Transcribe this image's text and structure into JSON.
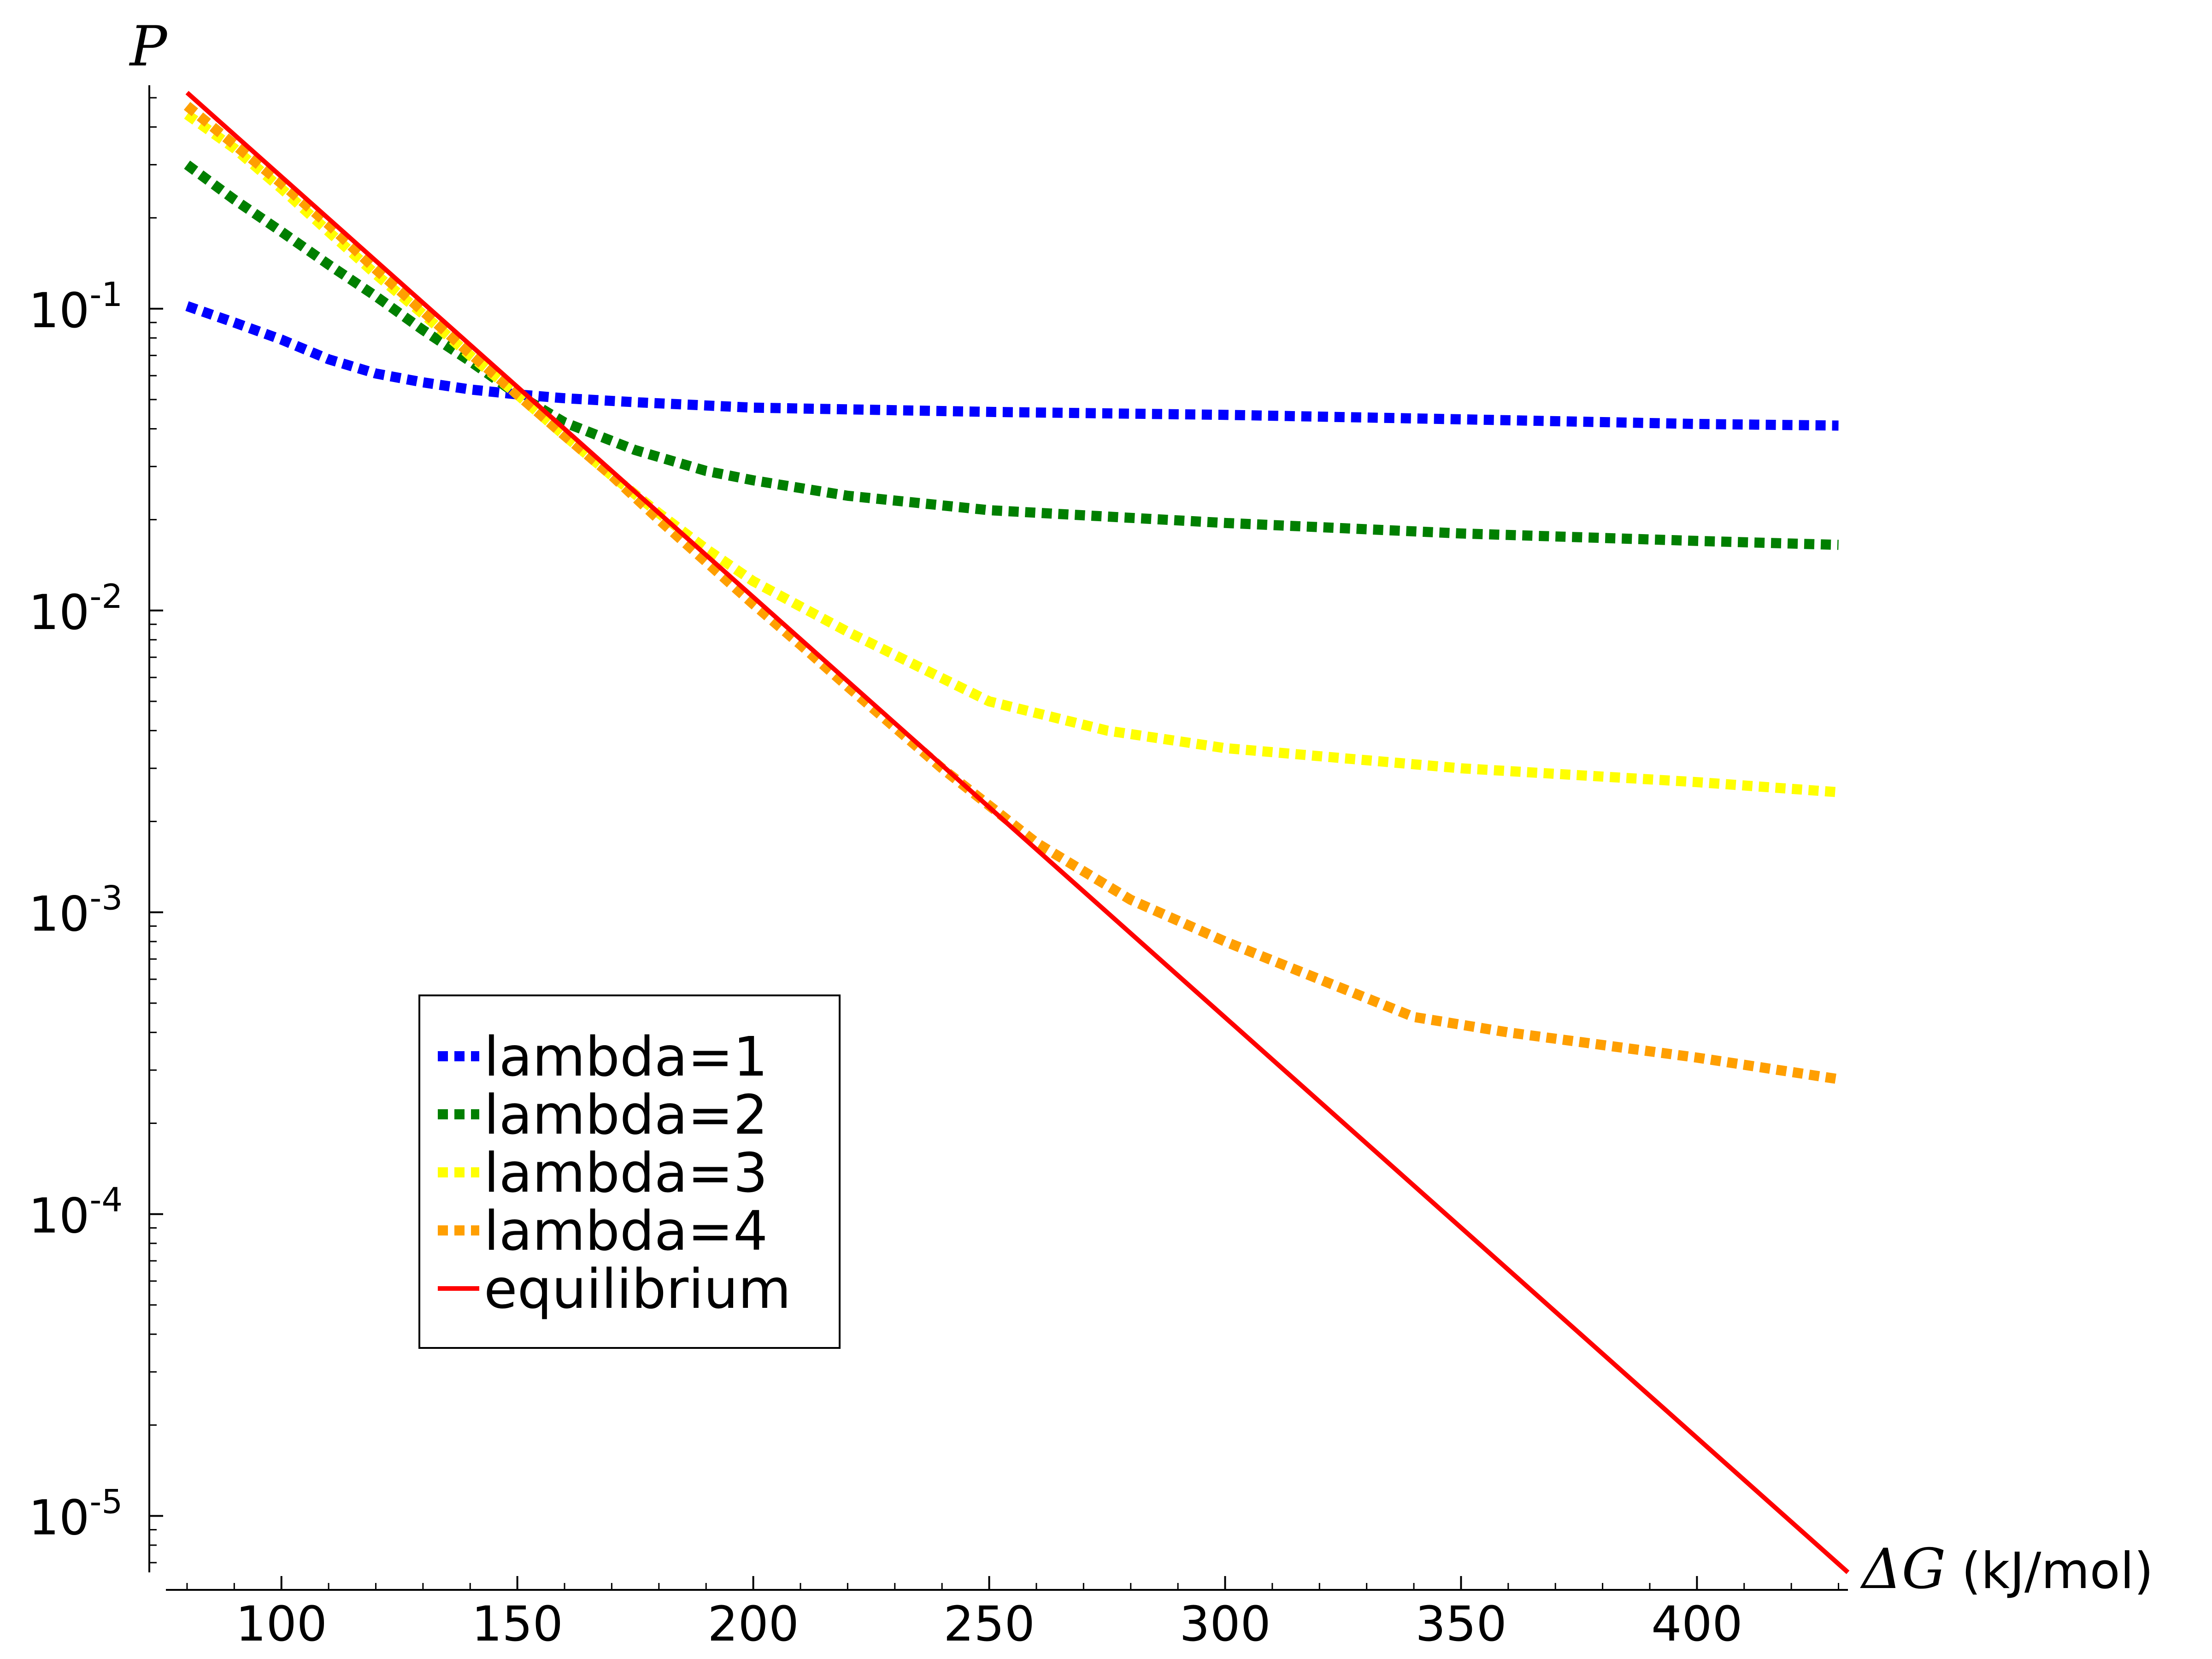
{
  "chart_data": {
    "type": "line",
    "title": "",
    "xlabel": {
      "symbol": "ΔG",
      "unit": "(kJ/mol)"
    },
    "ylabel": "P",
    "xlim": [
      72,
      432
    ],
    "ylim": [
      6.5e-06,
      0.55
    ],
    "yscale": "log",
    "grid": false,
    "legend_position": "lower-left",
    "x_ticks": [
      {
        "value": 100,
        "label": "100"
      },
      {
        "value": 150,
        "label": "150"
      },
      {
        "value": 200,
        "label": "200"
      },
      {
        "value": 250,
        "label": "250"
      },
      {
        "value": 300,
        "label": "300"
      },
      {
        "value": 350,
        "label": "350"
      },
      {
        "value": 400,
        "label": "400"
      }
    ],
    "y_ticks": [
      {
        "value": 0.1,
        "base": "10",
        "exp": "-1"
      },
      {
        "value": 0.01,
        "base": "10",
        "exp": "-2"
      },
      {
        "value": 0.001,
        "base": "10",
        "exp": "-3"
      },
      {
        "value": 0.0001,
        "base": "10",
        "exp": "-4"
      },
      {
        "value": 1e-05,
        "base": "10",
        "exp": "-5"
      }
    ],
    "series": [
      {
        "name": "lambda=1",
        "color": "#0000ff",
        "style": "dotted",
        "x": [
          80,
          90,
          100,
          110,
          120,
          130,
          140,
          150,
          160,
          175,
          200,
          250,
          300,
          350,
          400,
          430
        ],
        "y": [
          0.102,
          0.09,
          0.079,
          0.068,
          0.061,
          0.057,
          0.054,
          0.052,
          0.0505,
          0.049,
          0.047,
          0.0455,
          0.0445,
          0.043,
          0.0415,
          0.041
        ]
      },
      {
        "name": "lambda=2",
        "color": "#007f00",
        "style": "dotted",
        "x": [
          80,
          90,
          100,
          110,
          120,
          130,
          140,
          150,
          160,
          175,
          190,
          200,
          220,
          250,
          300,
          350,
          400,
          430
        ],
        "y": [
          0.3,
          0.23,
          0.18,
          0.14,
          0.11,
          0.085,
          0.067,
          0.052,
          0.042,
          0.034,
          0.029,
          0.027,
          0.024,
          0.0215,
          0.0195,
          0.018,
          0.017,
          0.0165
        ]
      },
      {
        "name": "lambda=3",
        "color": "#ffff00",
        "style": "dotted",
        "x": [
          80,
          90,
          100,
          110,
          120,
          130,
          140,
          150,
          160,
          170,
          180,
          190,
          200,
          220,
          250,
          275,
          300,
          350,
          400,
          430
        ],
        "y": [
          0.44,
          0.34,
          0.25,
          0.18,
          0.13,
          0.096,
          0.07,
          0.052,
          0.038,
          0.028,
          0.021,
          0.016,
          0.0125,
          0.0085,
          0.005,
          0.004,
          0.0035,
          0.003,
          0.0027,
          0.0025
        ]
      },
      {
        "name": "lambda=4",
        "color": "#ff9f00",
        "style": "dotted",
        "x": [
          80,
          90,
          100,
          110,
          120,
          130,
          140,
          150,
          160,
          170,
          180,
          190,
          200,
          210,
          220,
          240,
          260,
          280,
          300,
          320,
          340,
          360,
          400,
          430
        ],
        "y": [
          0.47,
          0.35,
          0.26,
          0.19,
          0.135,
          0.098,
          0.071,
          0.052,
          0.038,
          0.028,
          0.02,
          0.0145,
          0.0105,
          0.0077,
          0.0056,
          0.003,
          0.0017,
          0.0011,
          0.0008,
          0.0006,
          0.00045,
          0.0004,
          0.00033,
          0.00028
        ]
      },
      {
        "name": "equilibrium",
        "color": "#ff0000",
        "style": "solid",
        "x": [
          80,
          432
        ],
        "y": [
          0.52,
          6.5e-06
        ]
      }
    ]
  }
}
